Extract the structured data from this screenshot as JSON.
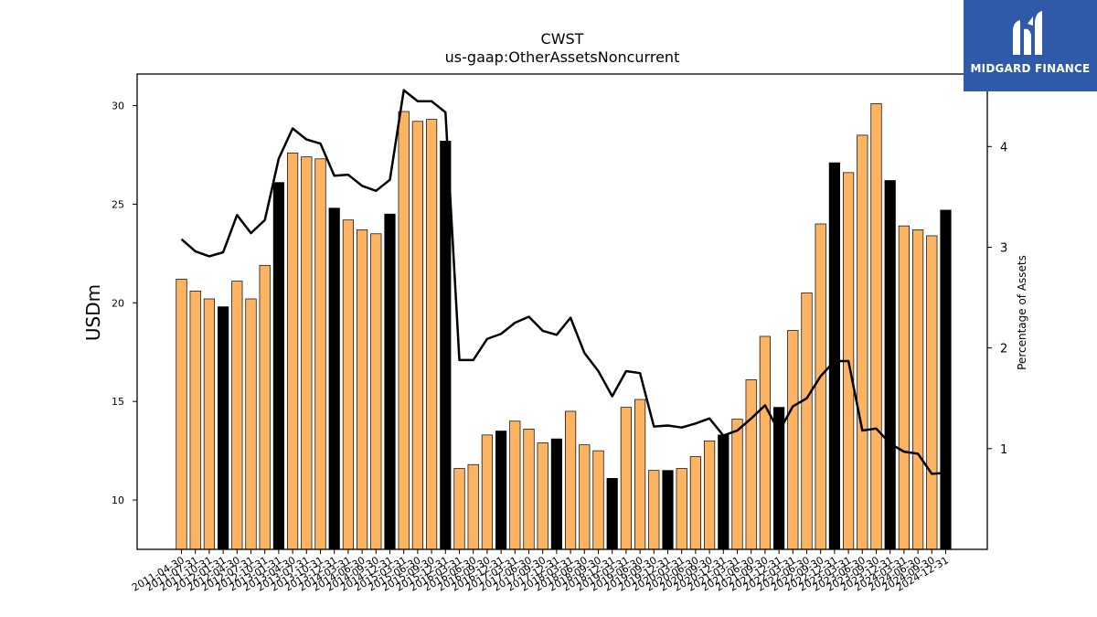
{
  "colors": {
    "regular_bar": "#fdb462",
    "fiscal_year_bar": "#000000",
    "line": "#000000",
    "logo_bg": "#2e5aa8"
  },
  "logo": {
    "text": "MIDGARD FINANCE"
  },
  "chart_data": {
    "type": "bar",
    "title": "CWST",
    "subtitle": "us-gaap:OtherAssetsNoncurrent",
    "ylabel": "USDm",
    "y2label": "Percentage of Assets",
    "ylim": [
      7.5,
      31.6
    ],
    "y2lim": [
      0,
      4.72
    ],
    "yticks": [
      10,
      15,
      20,
      25,
      30
    ],
    "y2ticks": [
      1,
      2,
      3,
      4
    ],
    "categories": [
      "2011-04-30",
      "2011-07-31",
      "2011-10-31",
      "2012-01-31",
      "2012-04-30",
      "2012-07-31",
      "2012-10-31",
      "2013-01-31",
      "2013-04-30",
      "2013-07-31",
      "2013-10-31",
      "2013-12-31",
      "2014-03-31",
      "2014-06-30",
      "2014-09-30",
      "2014-12-31",
      "2015-03-31",
      "2015-06-30",
      "2015-09-30",
      "2015-12-31",
      "2016-03-31",
      "2016-06-30",
      "2016-09-30",
      "2016-12-31",
      "2017-03-31",
      "2017-06-30",
      "2017-09-30",
      "2017-12-31",
      "2018-03-31",
      "2018-06-30",
      "2018-09-30",
      "2018-12-31",
      "2019-03-31",
      "2019-06-30",
      "2019-09-30",
      "2019-12-31",
      "2020-03-31",
      "2020-06-30",
      "2020-09-30",
      "2020-12-31",
      "2021-03-31",
      "2021-06-30",
      "2021-09-30",
      "2021-12-31",
      "2022-03-31",
      "2022-06-30",
      "2022-09-30",
      "2022-12-31",
      "2023-03-31",
      "2023-06-30",
      "2023-09-30",
      "2023-12-31",
      "2024-03-31",
      "2024-06-30",
      "2024-09-30",
      "2024-12-31"
    ],
    "series": [
      {
        "kind": "bar",
        "values": [
          21.2,
          20.6,
          20.2,
          19.8,
          21.1,
          20.2,
          21.9,
          26.1,
          27.6,
          27.4,
          27.3,
          24.8,
          24.2,
          23.7,
          23.5,
          24.5,
          29.7,
          29.2,
          29.3,
          28.2,
          11.6,
          11.8,
          13.3,
          13.5,
          14.0,
          13.6,
          12.9,
          13.1,
          14.5,
          12.8,
          12.5,
          11.1,
          14.7,
          15.1,
          11.5,
          11.5,
          11.6,
          12.2,
          13.0,
          13.3,
          14.1,
          16.1,
          18.3,
          14.7,
          18.6,
          20.5,
          24.0,
          27.1,
          26.6,
          28.5,
          30.1,
          26.2,
          23.9,
          23.7,
          23.4,
          24.7
        ],
        "fiscal_year_end": [
          false,
          false,
          false,
          true,
          false,
          false,
          false,
          true,
          false,
          false,
          false,
          true,
          false,
          false,
          false,
          true,
          false,
          false,
          false,
          true,
          false,
          false,
          false,
          true,
          false,
          false,
          false,
          true,
          false,
          false,
          false,
          true,
          false,
          false,
          false,
          true,
          false,
          false,
          false,
          true,
          false,
          false,
          false,
          true,
          false,
          false,
          false,
          true,
          false,
          false,
          false,
          true,
          false,
          false,
          false,
          true
        ]
      },
      {
        "kind": "line",
        "axis": "right",
        "values": [
          3.08,
          2.96,
          2.91,
          2.95,
          3.32,
          3.14,
          3.27,
          3.88,
          4.18,
          4.07,
          4.03,
          3.71,
          3.72,
          3.61,
          3.56,
          3.67,
          4.56,
          4.45,
          4.45,
          4.34,
          1.88,
          1.88,
          2.09,
          2.14,
          2.25,
          2.31,
          2.17,
          2.13,
          2.3,
          1.95,
          1.77,
          1.52,
          1.77,
          1.75,
          1.22,
          1.23,
          1.21,
          1.25,
          1.3,
          1.13,
          1.18,
          1.3,
          1.43,
          1.17,
          1.42,
          1.5,
          1.72,
          1.87,
          1.87,
          1.18,
          1.2,
          1.05,
          0.97,
          0.95,
          0.75,
          0.76
        ]
      }
    ]
  }
}
